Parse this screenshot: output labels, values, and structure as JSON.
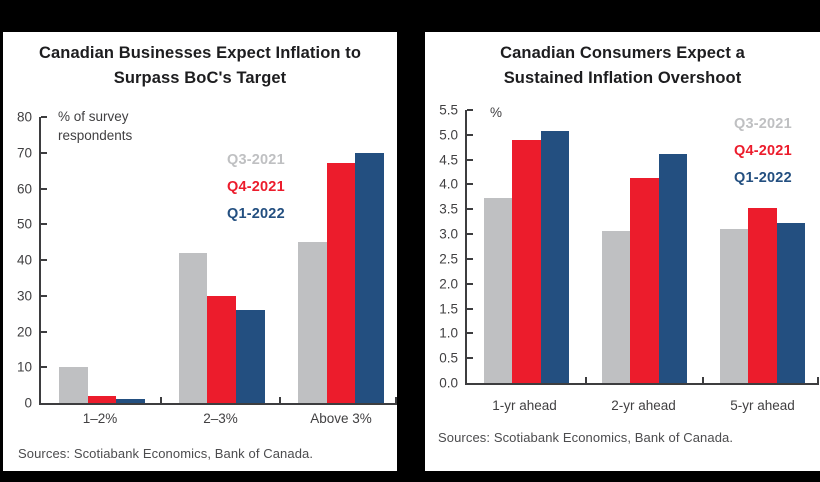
{
  "page": {
    "background_color": "#000000",
    "panel_background": "#ffffff"
  },
  "chart_data": [
    {
      "type": "bar",
      "title": "Canadian Businesses Expect Inflation to Surpass BoC's Target",
      "title_display": "Canadian Businesses Expect Inflation to\nSurpass BoC's Target",
      "y_unit_label": "% of survey\nrespondents",
      "categories": [
        "1–2%",
        "2–3%",
        "Above 3%"
      ],
      "series": [
        {
          "name": "Q3-2021",
          "color": "#BFC0C2",
          "values": [
            10,
            42,
            45
          ]
        },
        {
          "name": "Q4-2021",
          "color": "#EC1C2C",
          "values": [
            2,
            30,
            67
          ]
        },
        {
          "name": "Q1-2022",
          "color": "#234F80",
          "values": [
            1,
            26,
            70
          ]
        }
      ],
      "ylim": [
        0,
        80
      ],
      "ytick_step": 10,
      "ytick_decimals": 0,
      "grid": false,
      "legend_position": "inside-upper-middle",
      "sources": "Sources: Scotiabank Economics, Bank of Canada."
    },
    {
      "type": "bar",
      "title": "Canadian Consumers Expect a Sustained Inflation Overshoot",
      "title_display": "Canadian Consumers Expect a\nSustained Inflation Overshoot",
      "y_unit_label": "%",
      "categories": [
        "1-yr ahead",
        "2-yr ahead",
        "5-yr ahead"
      ],
      "series": [
        {
          "name": "Q3-2021",
          "color": "#BFC0C2",
          "values": [
            3.72,
            3.06,
            3.11
          ]
        },
        {
          "name": "Q4-2021",
          "color": "#EC1C2C",
          "values": [
            4.89,
            4.14,
            3.53
          ]
        },
        {
          "name": "Q1-2022",
          "color": "#234F80",
          "values": [
            5.07,
            4.62,
            3.23
          ]
        }
      ],
      "ylim": [
        0,
        5.5
      ],
      "ytick_step": 0.5,
      "ytick_decimals": 1,
      "grid": false,
      "legend_position": "inside-upper-right",
      "sources": "Sources: Scotiabank Economics, Bank of Canada."
    }
  ]
}
